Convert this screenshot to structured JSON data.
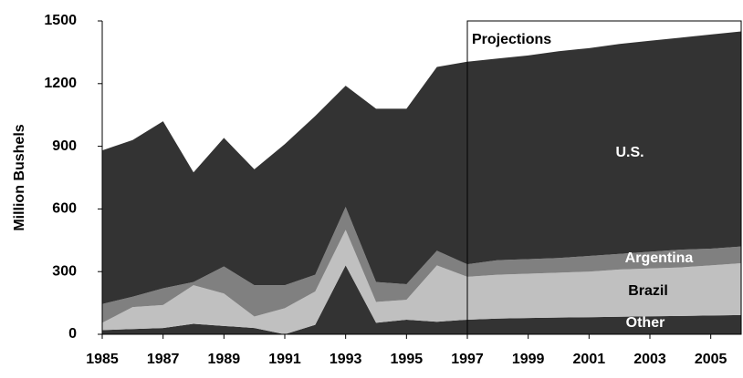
{
  "chart_data": {
    "type": "stacked_area",
    "y_label": "Million Bushels",
    "x": [
      1985,
      1986,
      1987,
      1988,
      1989,
      1990,
      1991,
      1992,
      1993,
      1994,
      1995,
      1996,
      1997,
      1998,
      1999,
      2000,
      2001,
      2002,
      2003,
      2004,
      2005,
      2006
    ],
    "series": [
      {
        "name": "Other",
        "color": "#333333",
        "label_color": "#ffffff",
        "values": [
          20,
          25,
          30,
          50,
          40,
          30,
          0,
          45,
          330,
          55,
          70,
          60,
          70,
          75,
          78,
          80,
          82,
          84,
          86,
          88,
          90,
          92
        ]
      },
      {
        "name": "Brazil",
        "color": "#c0c0c0",
        "label_color": "#000000",
        "values": [
          35,
          105,
          110,
          185,
          155,
          55,
          125,
          160,
          170,
          100,
          95,
          270,
          205,
          210,
          212,
          215,
          218,
          226,
          229,
          232,
          240,
          248
        ]
      },
      {
        "name": "Argentina",
        "color": "#808080",
        "label_color": "#ffffff",
        "values": [
          90,
          50,
          80,
          15,
          130,
          150,
          110,
          80,
          110,
          95,
          75,
          70,
          60,
          70,
          70,
          70,
          75,
          75,
          80,
          85,
          80,
          80
        ]
      },
      {
        "name": "U.S.",
        "color": "#333333",
        "label_color": "#ffffff",
        "values": [
          735,
          750,
          800,
          525,
          615,
          555,
          675,
          760,
          580,
          830,
          840,
          880,
          970,
          965,
          975,
          990,
          995,
          1005,
          1010,
          1015,
          1025,
          1030
        ]
      }
    ],
    "xlim": [
      1985,
      2006
    ],
    "xticks": [
      1985,
      1987,
      1989,
      1991,
      1993,
      1995,
      1997,
      1999,
      2001,
      2003,
      2005
    ],
    "ylim": [
      0,
      1500
    ],
    "yticks": [
      0,
      300,
      600,
      900,
      1200,
      1500
    ],
    "projection": {
      "label": "Projections",
      "from": 1997,
      "to": 2006
    }
  }
}
